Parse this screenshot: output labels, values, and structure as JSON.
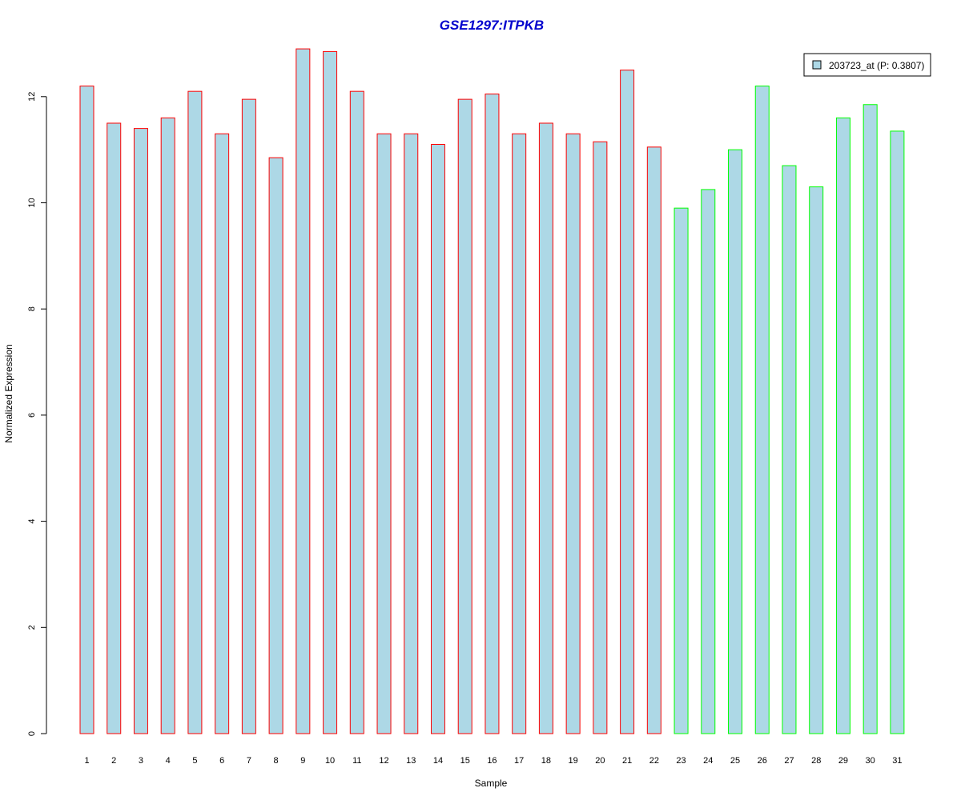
{
  "chart_data": {
    "type": "bar",
    "title": "GSE1297:ITPKB",
    "xlabel": "Sample",
    "ylabel": "Normalized Expression",
    "ylim": [
      0,
      13
    ],
    "yticks": [
      "0",
      "2",
      "4",
      "6",
      "8",
      "10",
      "12"
    ],
    "categories": [
      "1",
      "2",
      "3",
      "4",
      "5",
      "6",
      "7",
      "8",
      "9",
      "10",
      "11",
      "12",
      "13",
      "14",
      "15",
      "16",
      "17",
      "18",
      "19",
      "20",
      "21",
      "22",
      "23",
      "24",
      "25",
      "26",
      "27",
      "28",
      "29",
      "30",
      "31"
    ],
    "series": [
      {
        "name": "203723_at (P: 0.3807)",
        "values": [
          12.2,
          11.5,
          11.4,
          11.6,
          12.1,
          11.3,
          11.95,
          10.85,
          12.9,
          12.85,
          12.1,
          11.3,
          11.3,
          11.1,
          11.95,
          12.05,
          11.3,
          11.5,
          11.3,
          11.15,
          12.5,
          11.05,
          9.9,
          10.25,
          11.0,
          12.2,
          10.7,
          10.3,
          11.6,
          11.85,
          11.35
        ]
      }
    ],
    "group_sizes": [
      22,
      9
    ],
    "colors": {
      "fill": "#add8e6",
      "group_1_border": "#ff0000",
      "group_2_border": "#00ff00",
      "title": "#0000cd",
      "axis": "#000000"
    },
    "legend": {
      "position": "top-right",
      "label": "203723_at (P: 0.3807)"
    },
    "grid": false
  }
}
